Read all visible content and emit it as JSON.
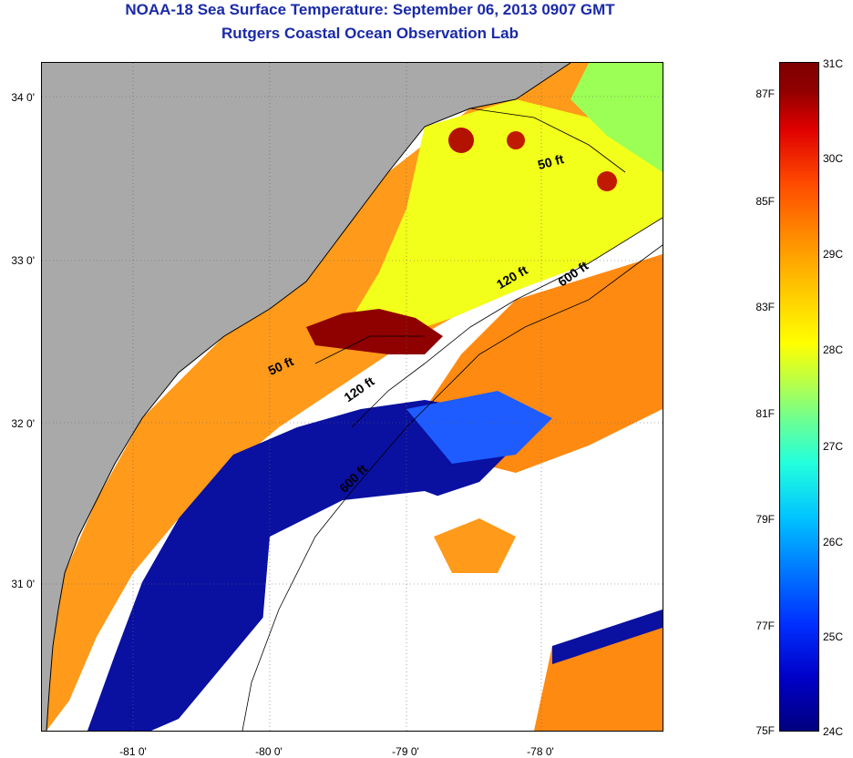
{
  "title_line1": "NOAA-18 Sea Surface Temperature:  September 06, 2013 0907 GMT",
  "title_line2": "Rutgers Coastal Ocean Observation Lab",
  "map": {
    "latitude_labels": [
      "34 0'",
      "33 0'",
      "32 0'",
      "31 0'"
    ],
    "longitude_labels": [
      "-81 0'",
      "-80 0'",
      "-79 0'",
      "-78 0'"
    ],
    "isobath_labels": [
      "50 ft",
      "120 ft",
      "600 ft",
      "50 ft",
      "120 ft",
      "600 ft"
    ],
    "colors": {
      "land": "#a9a9a9",
      "no_data": "#ffffff",
      "cold": "#00007f",
      "warm": "#7f0000",
      "coastline": "#000000"
    }
  },
  "colorbar": {
    "fahrenheit_labels": [
      "87F",
      "85F",
      "83F",
      "81F",
      "79F",
      "77F",
      "75F"
    ],
    "celsius_labels": [
      "31C",
      "30C",
      "29C",
      "28C",
      "27C",
      "26C",
      "25C",
      "24C"
    ],
    "range_celsius": [
      24,
      31
    ],
    "colormap": "jet"
  }
}
